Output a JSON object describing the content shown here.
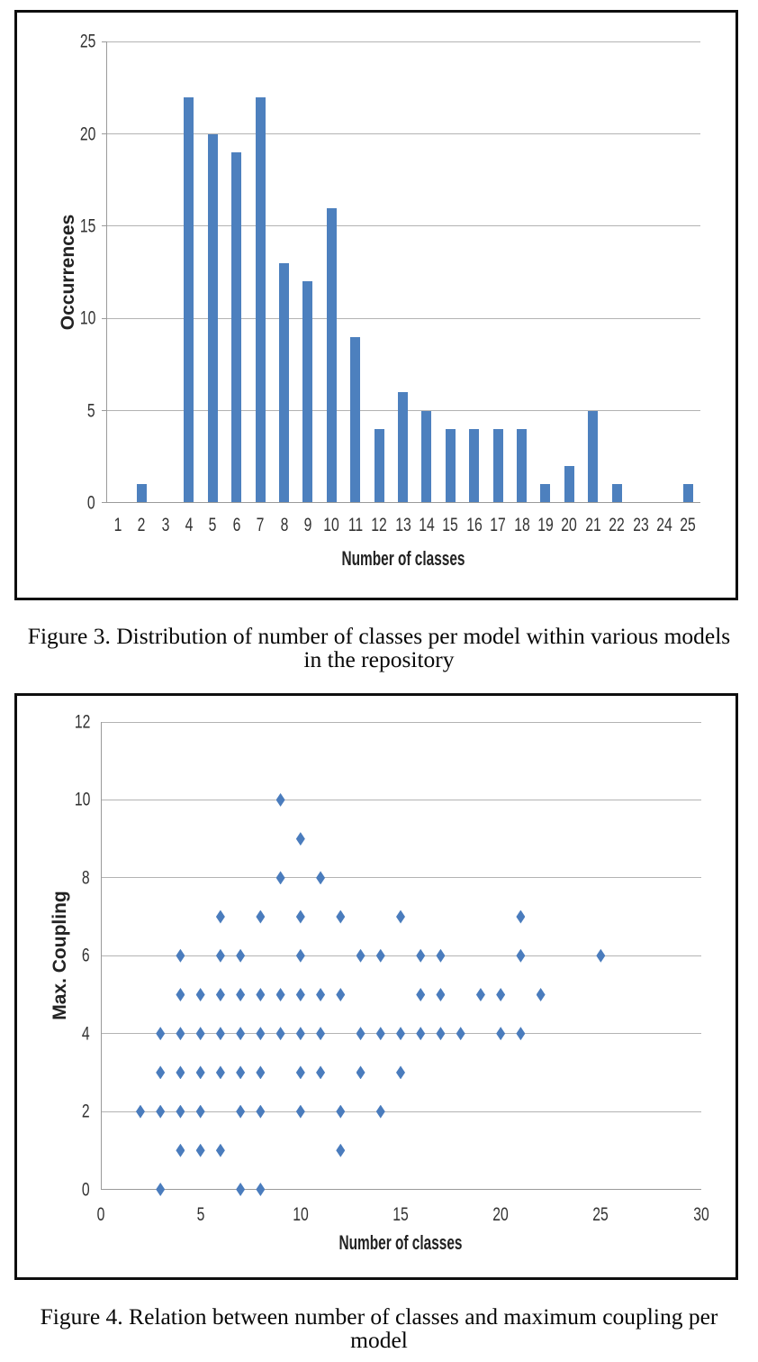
{
  "figure3": {
    "caption_line1": "Figure 3. Distribution of number of classes per model within various models",
    "caption_line2": "in the repository"
  },
  "figure4": {
    "caption_line1": "Figure 4. Relation between number of classes and maximum coupling per",
    "caption_line2": "model"
  },
  "chart_data": [
    {
      "type": "bar",
      "title": "",
      "categories": [
        1,
        2,
        3,
        4,
        5,
        6,
        7,
        8,
        9,
        10,
        11,
        12,
        13,
        14,
        15,
        16,
        17,
        18,
        19,
        20,
        21,
        22,
        23,
        24,
        25
      ],
      "values": [
        0,
        1,
        0,
        22,
        20,
        19,
        22,
        13,
        12,
        16,
        9,
        4,
        6,
        5,
        4,
        4,
        4,
        4,
        1,
        2,
        5,
        1,
        0,
        0,
        1
      ],
      "xlabel": "Number of classes",
      "ylabel": "Occurrences",
      "ylim": [
        0,
        25
      ],
      "yticks": [
        0,
        5,
        10,
        15,
        20,
        25
      ],
      "grid": true,
      "legend": "none",
      "bar_color": "#4d80be",
      "caption": "Figure 3. Distribution of number of classes per model within various models in the repository"
    },
    {
      "type": "scatter",
      "title": "",
      "points": [
        [
          9,
          10
        ],
        [
          10,
          9
        ],
        [
          9,
          8
        ],
        [
          11,
          8
        ],
        [
          6,
          7
        ],
        [
          8,
          7
        ],
        [
          10,
          7
        ],
        [
          12,
          7
        ],
        [
          15,
          7
        ],
        [
          21,
          7
        ],
        [
          4,
          6
        ],
        [
          6,
          6
        ],
        [
          7,
          6
        ],
        [
          10,
          6
        ],
        [
          13,
          6
        ],
        [
          14,
          6
        ],
        [
          16,
          6
        ],
        [
          17,
          6
        ],
        [
          21,
          6
        ],
        [
          25,
          6
        ],
        [
          4,
          5
        ],
        [
          5,
          5
        ],
        [
          6,
          5
        ],
        [
          7,
          5
        ],
        [
          8,
          5
        ],
        [
          9,
          5
        ],
        [
          10,
          5
        ],
        [
          11,
          5
        ],
        [
          12,
          5
        ],
        [
          16,
          5
        ],
        [
          17,
          5
        ],
        [
          19,
          5
        ],
        [
          20,
          5
        ],
        [
          22,
          5
        ],
        [
          3,
          4
        ],
        [
          4,
          4
        ],
        [
          5,
          4
        ],
        [
          6,
          4
        ],
        [
          7,
          4
        ],
        [
          8,
          4
        ],
        [
          9,
          4
        ],
        [
          10,
          4
        ],
        [
          11,
          4
        ],
        [
          13,
          4
        ],
        [
          14,
          4
        ],
        [
          15,
          4
        ],
        [
          16,
          4
        ],
        [
          17,
          4
        ],
        [
          18,
          4
        ],
        [
          20,
          4
        ],
        [
          21,
          4
        ],
        [
          3,
          3
        ],
        [
          4,
          3
        ],
        [
          5,
          3
        ],
        [
          6,
          3
        ],
        [
          7,
          3
        ],
        [
          8,
          3
        ],
        [
          10,
          3
        ],
        [
          11,
          3
        ],
        [
          13,
          3
        ],
        [
          15,
          3
        ],
        [
          2,
          2
        ],
        [
          3,
          2
        ],
        [
          4,
          2
        ],
        [
          5,
          2
        ],
        [
          7,
          2
        ],
        [
          8,
          2
        ],
        [
          10,
          2
        ],
        [
          12,
          2
        ],
        [
          14,
          2
        ],
        [
          4,
          1
        ],
        [
          5,
          1
        ],
        [
          6,
          1
        ],
        [
          12,
          1
        ],
        [
          3,
          0
        ],
        [
          7,
          0
        ],
        [
          8,
          0
        ]
      ],
      "xlabel": "Number of classes",
      "ylabel": "Max. Coupling",
      "xlim": [
        0,
        30
      ],
      "ylim": [
        0,
        12
      ],
      "xticks": [
        0,
        5,
        10,
        15,
        20,
        25,
        30
      ],
      "yticks": [
        0,
        2,
        4,
        6,
        8,
        10,
        12
      ],
      "grid": true,
      "legend": "none",
      "marker": "diamond",
      "marker_color": "#4a7cbd",
      "caption": "Figure 4. Relation between number of classes and maximum coupling per model"
    }
  ]
}
